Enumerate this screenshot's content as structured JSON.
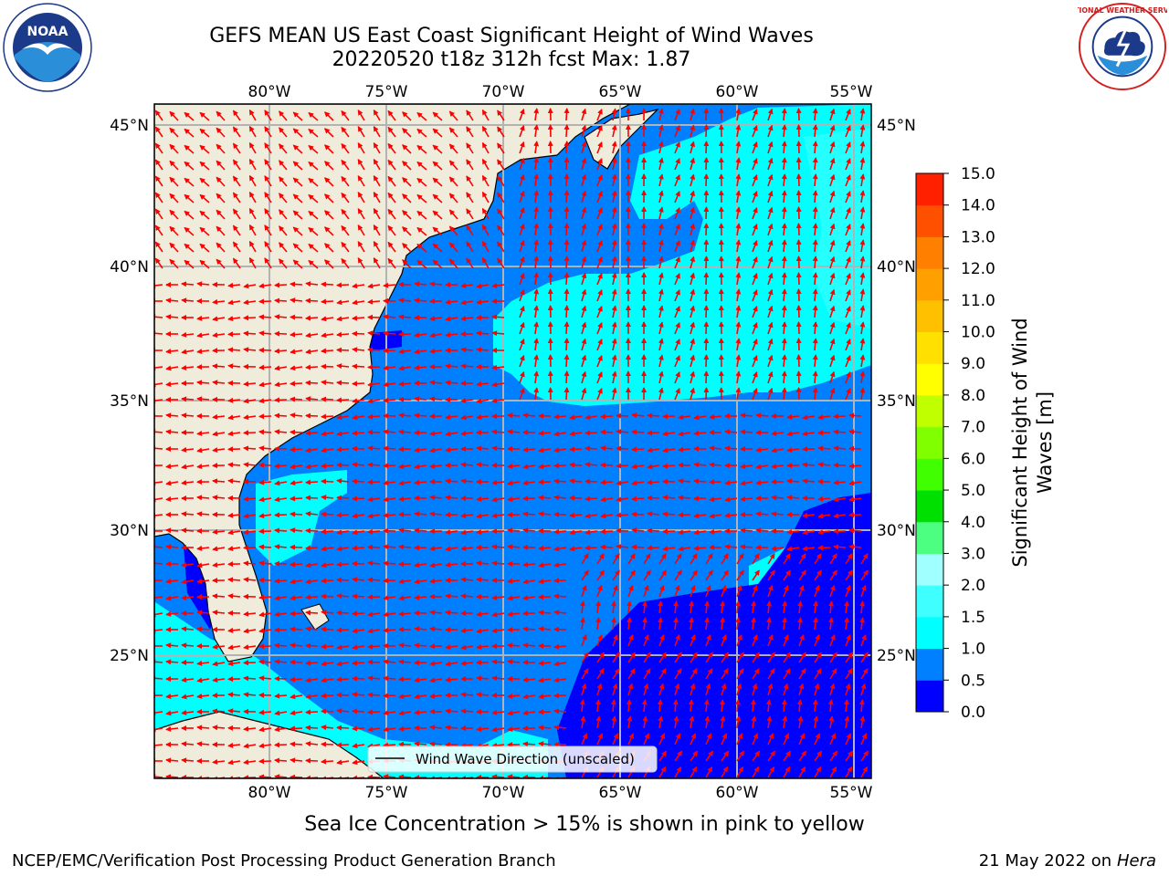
{
  "header": {
    "title_line1": "GEFS MEAN US East Coast Significant Height of Wind Waves",
    "title_line2": "20220520 t18z 312h fcst   Max: 1.87"
  },
  "logos": {
    "left": {
      "icon": "noaa-logo",
      "text": "NOAA"
    },
    "right": {
      "icon": "nws-logo",
      "text": "NATIONAL WEATHER SERVICE"
    }
  },
  "map": {
    "lon_ticks": [
      "80°W",
      "75°W",
      "70°W",
      "65°W",
      "60°W",
      "55°W"
    ],
    "lat_ticks": [
      "45°N",
      "40°N",
      "35°N",
      "30°N",
      "25°N"
    ],
    "legend_label": "Wind Wave Direction (unscaled)",
    "colors": {
      "land": "#efecdc",
      "coast": "#000000",
      "arrow": "#ff0000",
      "grid": "#b3b3b3",
      "wave_0_0_5": "#0000ff",
      "wave_0_5_1_0": "#0080ff",
      "wave_1_0_1_5": "#00ffff",
      "wave_1_5_2_0": "#40ffff"
    }
  },
  "colorbar": {
    "label_line1": "Significant Height of Wind",
    "label_line2": "Waves [m]",
    "ticks": [
      "0.0",
      "0.5",
      "1.0",
      "1.5",
      "2.0",
      "3.0",
      "4.0",
      "5.0",
      "6.0",
      "7.0",
      "8.0",
      "9.0",
      "10.0",
      "11.0",
      "12.0",
      "13.0",
      "14.0",
      "15.0"
    ],
    "colors": [
      "#0000ff",
      "#0080ff",
      "#00ffff",
      "#40ffff",
      "#a0ffff",
      "#4dff80",
      "#00e000",
      "#40ff00",
      "#80ff00",
      "#c0ff00",
      "#ffff00",
      "#ffe000",
      "#ffc000",
      "#ffa000",
      "#ff8000",
      "#ff5000",
      "#ff2000"
    ]
  },
  "footer": {
    "note": "Sea Ice Concentration > 15% is shown in pink to yellow",
    "credit": "NCEP/EMC/Verification Post Processing Product Generation Branch",
    "date": "21 May 2022 on",
    "machine": "Hera"
  }
}
